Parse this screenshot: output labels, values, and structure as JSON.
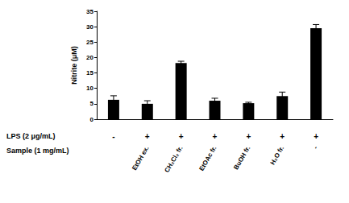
{
  "chart_data": {
    "type": "bar",
    "y_label": "Nitrite (μM)",
    "categories": [
      null,
      "EtOH ex.",
      "CH₂Cl₂ fr.",
      "EtOAc fr.",
      "BuOH fr.",
      "H₂O fr.",
      "-"
    ],
    "category_title": "Sample (1 mg/mL)",
    "lps_title": "LPS (2 μg/mL)",
    "lps_labels": [
      "-",
      "+",
      "+",
      "+",
      "+",
      "+",
      "+"
    ],
    "values": [
      6.3,
      5.0,
      18.2,
      6.0,
      5.2,
      7.5,
      29.5
    ],
    "errors": [
      1.3,
      1.0,
      0.6,
      0.8,
      0.3,
      1.3,
      1.2
    ],
    "color": "#000000",
    "ylim": [
      0,
      35
    ],
    "yticks": [
      0,
      5,
      10,
      15,
      20,
      25,
      30,
      35
    ],
    "grid": false
  }
}
